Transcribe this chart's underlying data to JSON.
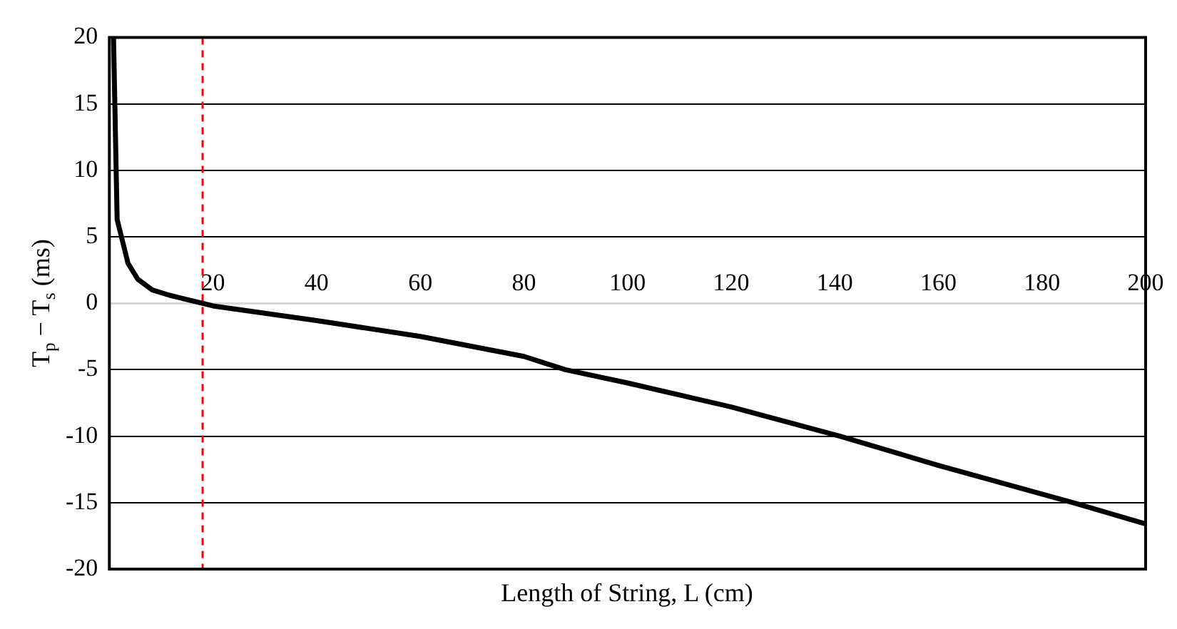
{
  "chart_data": {
    "type": "line",
    "xlabel": "Length of String, L (cm)",
    "ylabel": "T$_{p}$ − T$_{s}$ (ms)",
    "series": [
      {
        "color": "#000000",
        "x": [
          0.8,
          1.5,
          3.6,
          5.5,
          8.3,
          11.6,
          17.9,
          20,
          40,
          60,
          80,
          88,
          100,
          120,
          141,
          160,
          186,
          200
        ],
        "values": [
          20,
          6.3,
          3.0,
          1.8,
          1.0,
          0.6,
          0,
          -0.2,
          -1.3,
          -2.5,
          -4,
          -5,
          -6,
          -7.8,
          -10,
          -12.2,
          -15,
          -16.6
        ]
      }
    ],
    "xlim": [
      0,
      200
    ],
    "xticks": [
      20,
      40,
      60,
      80,
      100,
      120,
      140,
      160,
      180,
      200
    ],
    "ylim": [
      -20,
      20
    ],
    "yticks": [
      -20,
      -15,
      -10,
      -5,
      0,
      5,
      10,
      15,
      20
    ],
    "grid": "y",
    "marker": "none",
    "line_style": "solid",
    "ref_lines": [
      {
        "axis": "x",
        "value": 18,
        "color": "#ff0000",
        "line_style": "dashed"
      }
    ]
  }
}
